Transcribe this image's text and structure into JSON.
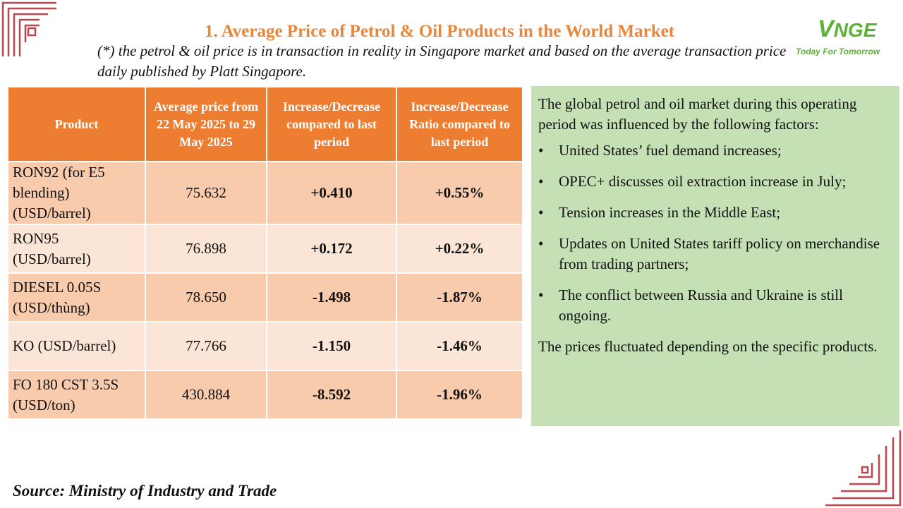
{
  "title": "1. Average Price of Petrol & Oil Products in the World Market",
  "subtitle": "(*) the petrol & oil price is in transaction in reality in Singapore market and based on the average transaction price daily published by Platt Singapore.",
  "logo": {
    "mark_v": "V",
    "mark_rest": "NGE",
    "tagline": "Today For Tomorrow"
  },
  "table": {
    "headers": {
      "product": "Product",
      "average_price": "Average price from 22 May 2025 to 29 May 2025",
      "change": "Increase/Decrease compared to last period",
      "ratio": "Increase/Decrease Ratio compared to last period"
    },
    "rows": [
      {
        "product": "RON92 (for E5 blending) (USD/barrel)",
        "price": "75.632",
        "change": "+0.410",
        "ratio": "+0.55%"
      },
      {
        "product": "RON95 (USD/barrel)",
        "price": "76.898",
        "change": "+0.172",
        "ratio": "+0.22%"
      },
      {
        "product": "DIESEL 0.05S (USD/thùng)",
        "price": "78.650",
        "change": "-1.498",
        "ratio": "-1.87%"
      },
      {
        "product": "KO (USD/barrel)",
        "price": "77.766",
        "change": "-1.150",
        "ratio": "-1.46%"
      },
      {
        "product": "FO 180 CST 3.5S (USD/ton)",
        "price": "430.884",
        "change": "-8.592",
        "ratio": "-1.96%"
      }
    ]
  },
  "factors": {
    "intro": "The global petrol and oil market during this operating period was influenced by the following factors:",
    "bullet": "•",
    "items": [
      "United States’ fuel demand increases;",
      "OPEC+ discusses oil extraction increase in July;",
      "Tension increases in the Middle East;",
      "Updates on United States tariff policy on merchandise from trading partners;",
      "The conflict between Russia and Ukraine is still ongoing."
    ],
    "conclusion": "The prices fluctuated depending on the specific products."
  },
  "source": "Source: Ministry of Industry and Trade",
  "colors": {
    "title": "#E7873B",
    "header_bg": "#ED7D31",
    "row_dark": "#F8CBAD",
    "row_light": "#FBE5D6",
    "positive": "#22A34A",
    "negative": "#E8202A",
    "factors_bg": "#C5E0B4",
    "logo": "#5DB235",
    "ornament": "#C0474F"
  }
}
